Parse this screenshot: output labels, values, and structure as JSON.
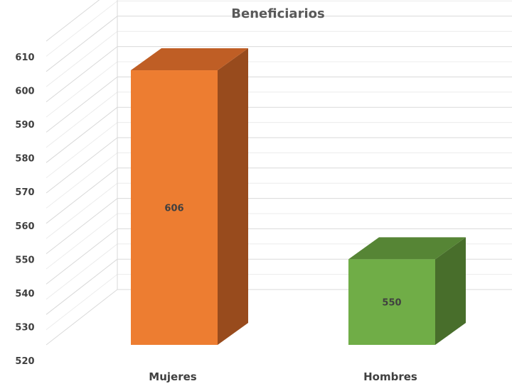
{
  "chart_data": {
    "type": "bar",
    "title": "Beneficiarios",
    "categories": [
      "Mujeres",
      "Hombres"
    ],
    "values": [
      606,
      550
    ],
    "data_labels": [
      "606",
      "550"
    ],
    "ylim": [
      520,
      610
    ],
    "yticks": [
      "520",
      "530",
      "540",
      "550",
      "560",
      "570",
      "580",
      "590",
      "600",
      "610"
    ],
    "grid": true,
    "three_d": true,
    "legend": "none",
    "colors": {
      "Mujeres": {
        "front": "#ED7D31",
        "side": "#984B1D",
        "top": "#BF5E25"
      },
      "Hombres": {
        "front": "#70AD47",
        "side": "#486E2B",
        "top": "#568535"
      }
    }
  }
}
